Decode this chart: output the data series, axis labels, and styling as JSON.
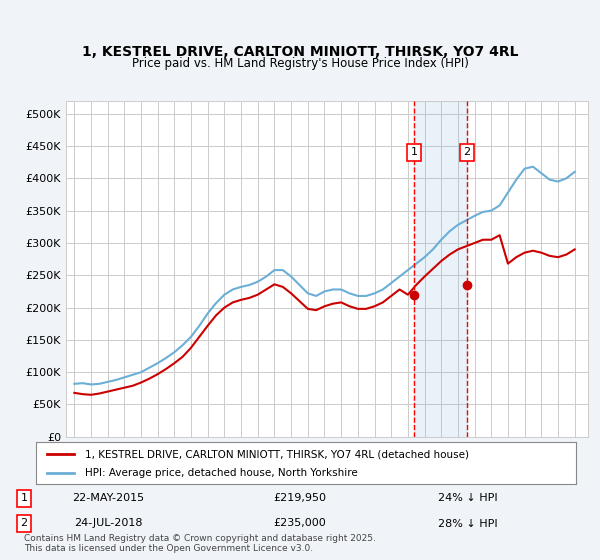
{
  "title": "1, KESTREL DRIVE, CARLTON MINIOTT, THIRSK, YO7 4RL",
  "subtitle": "Price paid vs. HM Land Registry's House Price Index (HPI)",
  "bg_color": "#f0f4f8",
  "plot_bg_color": "#ffffff",
  "legend_line1": "1, KESTREL DRIVE, CARLTON MINIOTT, THIRSK, YO7 4RL (detached house)",
  "legend_line2": "HPI: Average price, detached house, North Yorkshire",
  "annotation1": {
    "label": "1",
    "date_str": "22-MAY-2015",
    "price": "£219,950",
    "pct": "24% ↓ HPI",
    "x_year": 2015.38
  },
  "annotation2": {
    "label": "2",
    "date_str": "24-JUL-2018",
    "price": "£235,000",
    "pct": "28% ↓ HPI",
    "x_year": 2018.55
  },
  "footer": "Contains HM Land Registry data © Crown copyright and database right 2025.\nThis data is licensed under the Open Government Licence v3.0.",
  "hpi_color": "#6baed6",
  "price_color": "#cc0000",
  "ylim": [
    0,
    520000
  ],
  "yticks": [
    0,
    50000,
    100000,
    150000,
    200000,
    250000,
    300000,
    350000,
    400000,
    450000,
    500000
  ],
  "xlim": [
    1994.5,
    2025.8
  ],
  "hpi_x": [
    1995,
    1995.5,
    1996,
    1996.5,
    1997,
    1997.5,
    1998,
    1998.5,
    1999,
    1999.5,
    2000,
    2000.5,
    2001,
    2001.5,
    2002,
    2002.5,
    2003,
    2003.5,
    2004,
    2004.5,
    2005,
    2005.5,
    2006,
    2006.5,
    2007,
    2007.5,
    2008,
    2008.5,
    2009,
    2009.5,
    2010,
    2010.5,
    2011,
    2011.5,
    2012,
    2012.5,
    2013,
    2013.5,
    2014,
    2014.5,
    2015,
    2015.5,
    2016,
    2016.5,
    2017,
    2017.5,
    2018,
    2018.5,
    2019,
    2019.5,
    2020,
    2020.5,
    2021,
    2021.5,
    2022,
    2022.5,
    2023,
    2023.5,
    2024,
    2024.5,
    2025
  ],
  "hpi_y": [
    82000,
    83000,
    81000,
    82000,
    85000,
    88000,
    92000,
    96000,
    100000,
    107000,
    114000,
    122000,
    131000,
    142000,
    155000,
    172000,
    191000,
    207000,
    220000,
    228000,
    232000,
    235000,
    240000,
    248000,
    258000,
    258000,
    248000,
    235000,
    222000,
    218000,
    225000,
    228000,
    228000,
    222000,
    218000,
    218000,
    222000,
    228000,
    238000,
    248000,
    258000,
    268000,
    278000,
    290000,
    305000,
    318000,
    328000,
    335000,
    342000,
    348000,
    350000,
    358000,
    378000,
    398000,
    415000,
    418000,
    408000,
    398000,
    395000,
    400000,
    410000
  ],
  "price_x": [
    1995,
    1995.5,
    1996,
    1996.5,
    1997,
    1997.5,
    1998,
    1998.5,
    1999,
    1999.5,
    2000,
    2000.5,
    2001,
    2001.5,
    2002,
    2002.5,
    2003,
    2003.5,
    2004,
    2004.5,
    2005,
    2005.5,
    2006,
    2006.5,
    2007,
    2007.5,
    2008,
    2008.5,
    2009,
    2009.5,
    2010,
    2010.5,
    2011,
    2011.5,
    2012,
    2012.5,
    2013,
    2013.5,
    2014,
    2014.5,
    2015,
    2015.5,
    2016,
    2016.5,
    2017,
    2017.5,
    2018,
    2018.5,
    2019,
    2019.5,
    2020,
    2020.5,
    2021,
    2021.5,
    2022,
    2022.5,
    2023,
    2023.5,
    2024,
    2024.5,
    2025
  ],
  "price_y": [
    68000,
    66000,
    65000,
    67000,
    70000,
    73000,
    76000,
    79000,
    84000,
    90000,
    97000,
    105000,
    114000,
    124000,
    138000,
    155000,
    172000,
    188000,
    200000,
    208000,
    212000,
    215000,
    220000,
    228000,
    236000,
    232000,
    222000,
    210000,
    198000,
    196000,
    202000,
    206000,
    208000,
    202000,
    198000,
    198000,
    202000,
    208000,
    218000,
    228000,
    219950,
    235000,
    248000,
    260000,
    272000,
    282000,
    290000,
    295000,
    300000,
    305000,
    305000,
    312000,
    268000,
    278000,
    285000,
    288000,
    285000,
    280000,
    278000,
    282000,
    290000
  ]
}
